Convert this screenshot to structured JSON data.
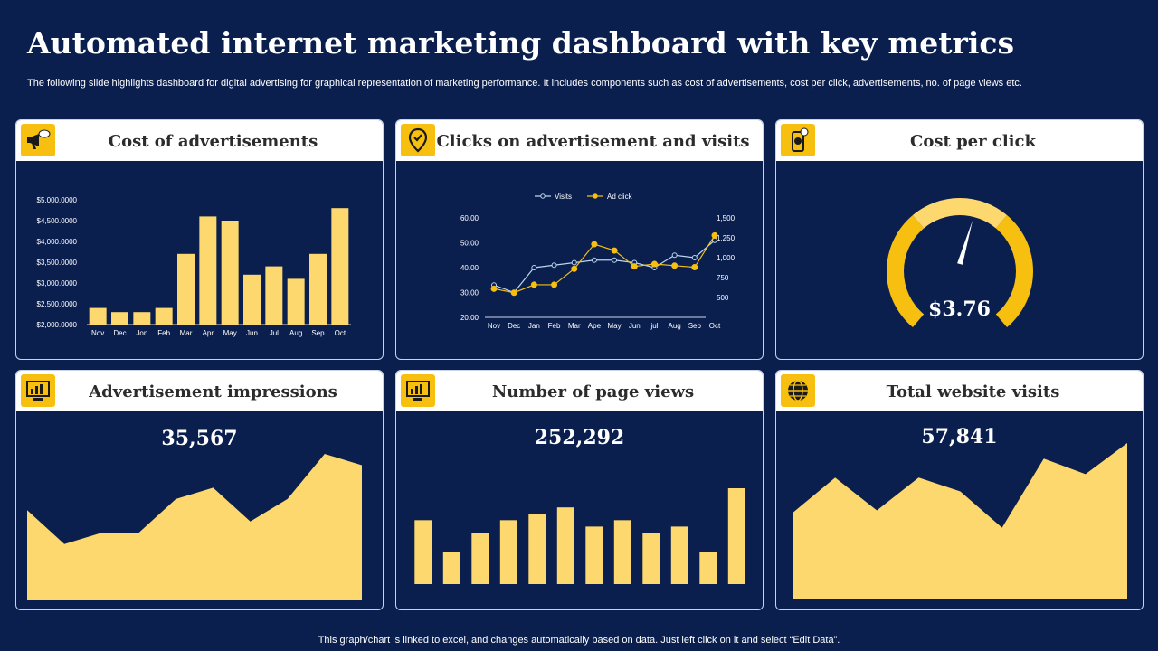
{
  "page": {
    "title": "Automated internet marketing dashboard with key metrics",
    "subtitle": "The following slide highlights dashboard for digital advertising for graphical representation of marketing performance. It includes components such as cost of advertisements, cost per click, advertisements, no. of page views etc.",
    "footer": "This graph/chart is linked to excel,  and changes automatically based on data. Just left click on it and select “Edit Data”."
  },
  "colors": {
    "background": "#0b1f4e",
    "accent": "#f7bf0f",
    "chart_fill": "#fdd86e",
    "visits_line": "#b9d6ee"
  },
  "panels": {
    "cost_ads": {
      "title": "Cost of advertisements",
      "icon": "megaphone-icon"
    },
    "clicks": {
      "title": "Clicks on advertisement and visits",
      "icon": "location-check-icon"
    },
    "cpc": {
      "title": "Cost per click",
      "icon": "mobile-dollar-icon",
      "value": "$3.76"
    },
    "impressions": {
      "title": "Advertisement impressions",
      "icon": "analytics-screen-icon",
      "value": "35,567"
    },
    "page_views": {
      "title": "Number of page views",
      "icon": "analytics-screen-icon",
      "value": "252,292"
    },
    "visits": {
      "title": "Total website visits",
      "icon": "globe-icon",
      "value": "57,841"
    }
  },
  "chart_data": [
    {
      "id": "cost_of_advertisements",
      "type": "bar",
      "categories": [
        "Nov",
        "Dec",
        "Jon",
        "Feb",
        "Mar",
        "Apr",
        "May",
        "Jun",
        "Jul",
        "Aug",
        "Sep",
        "Oct"
      ],
      "values": [
        2400,
        2300,
        2300,
        2400,
        3700,
        4600,
        4500,
        3200,
        3400,
        3100,
        3700,
        4800
      ],
      "ylim": [
        2000,
        5000
      ],
      "yticks": [
        "$2,000.0000",
        "$2,500.0000",
        "$3,000.0000",
        "$3,500.0000",
        "$4,000.0000",
        "$4,500.0000",
        "$5,000.0000"
      ]
    },
    {
      "id": "clicks_and_visits",
      "type": "line",
      "categories": [
        "Nov",
        "Dec",
        "Jan",
        "Feb",
        "Mar",
        "Ape",
        "May",
        "Jun",
        "jul",
        "Aug",
        "Sep",
        "Oct"
      ],
      "series": [
        {
          "name": "Visits",
          "axis": "left",
          "values": [
            33,
            30,
            40,
            41,
            42,
            43,
            43,
            42,
            40,
            45,
            44,
            51
          ]
        },
        {
          "name": "Ad click",
          "axis": "right",
          "values": [
            610,
            560,
            660,
            660,
            860,
            1170,
            1090,
            890,
            920,
            900,
            880,
            1280
          ]
        }
      ],
      "left_axis": {
        "ylim": [
          20,
          60
        ],
        "ticks": [
          "20.00",
          "30.00",
          "40.00",
          "50.00",
          "60.00"
        ]
      },
      "right_axis": {
        "ylim": [
          250,
          1500
        ],
        "ticks": [
          "500",
          "750",
          "1,000",
          "1,250",
          "1,500"
        ]
      },
      "legend": "top"
    },
    {
      "id": "cost_per_click",
      "type": "gauge",
      "value": 3.76,
      "level": 0.55
    },
    {
      "id": "advertisement_impressions",
      "type": "area",
      "values": [
        40,
        25,
        30,
        30,
        45,
        50,
        35,
        45,
        65,
        60
      ]
    },
    {
      "id": "page_views",
      "type": "bar",
      "values": [
        20,
        10,
        16,
        20,
        22,
        24,
        18,
        20,
        16,
        18,
        10,
        30
      ]
    },
    {
      "id": "total_website_visits",
      "type": "area",
      "values": [
        50,
        70,
        51,
        70,
        62,
        41,
        81,
        72,
        90
      ]
    }
  ]
}
